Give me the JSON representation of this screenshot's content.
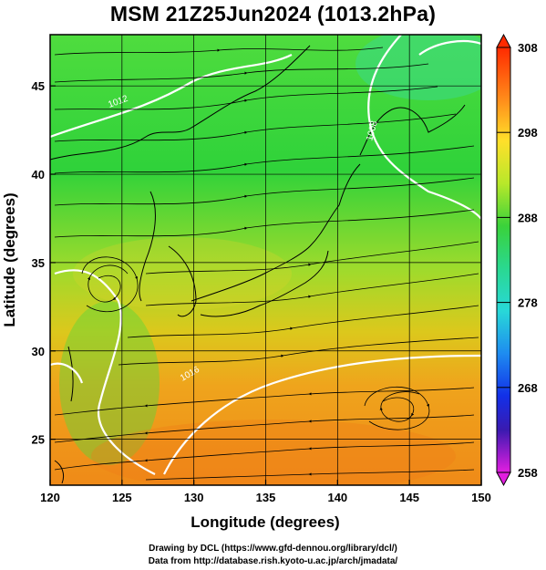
{
  "title": "MSM 21Z25Jun2024 (1013.2hPa)",
  "map": {
    "xlabel": "Longitude (degrees)",
    "ylabel": "Latitude  (degrees)",
    "lon_range": [
      120,
      150
    ],
    "lat_range": [
      22.4,
      47.9
    ],
    "lon_ticks": [
      "120",
      "125",
      "130",
      "135",
      "140",
      "145",
      "150"
    ],
    "lat_ticks": [
      "25",
      "30",
      "35",
      "40",
      "45"
    ],
    "contour_labels": [
      {
        "text": "1012",
        "lon": 122.2,
        "lat": 45.0
      },
      {
        "text": "1008",
        "lon": 139.6,
        "lat": 44.1
      },
      {
        "text": "1016",
        "lon": 127.0,
        "lat": 28.0
      }
    ]
  },
  "colorbar": {
    "ticks": [
      "308",
      "298",
      "288",
      "278",
      "268",
      "258"
    ],
    "max": 308,
    "min": 258
  },
  "credits": {
    "line1": "Drawing by DCL (https://www.gfd-dennou.org/library/dcl/)",
    "line2": "Data from http://database.rish.kyoto-u.ac.jp/arch/jmadata/"
  }
}
